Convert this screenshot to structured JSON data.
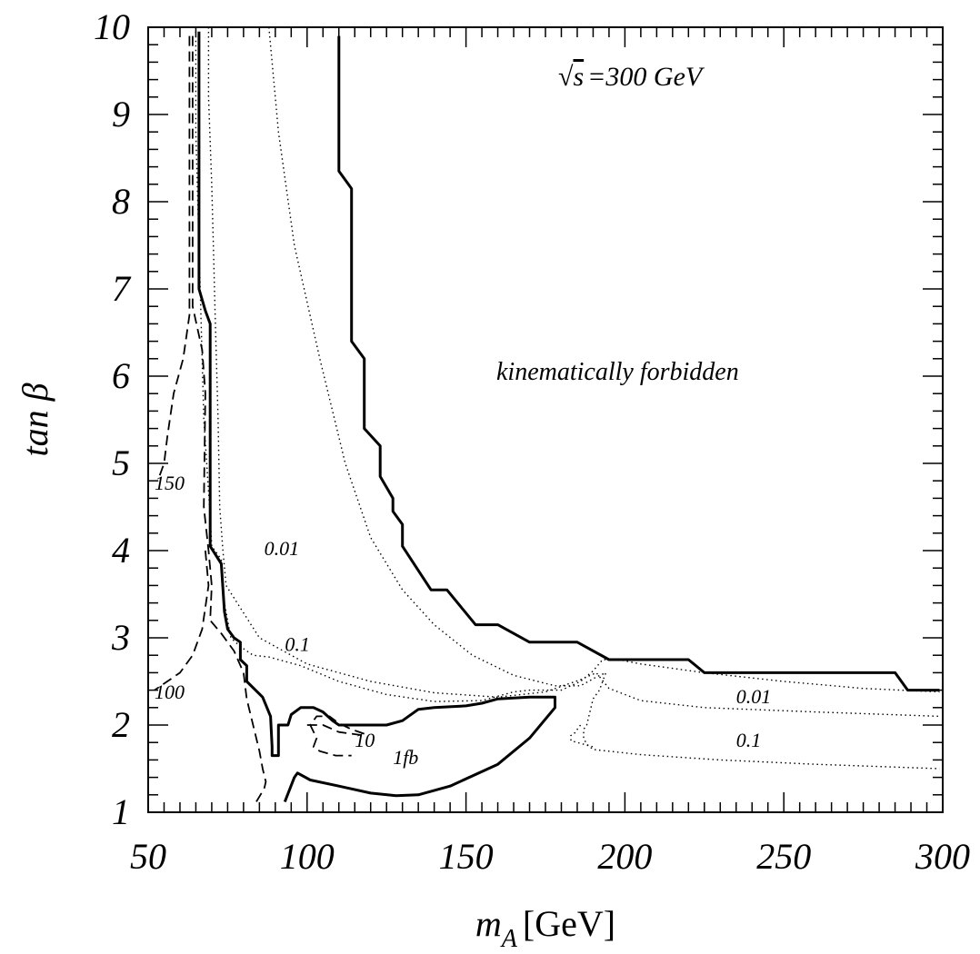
{
  "chart_data": {
    "type": "line",
    "xlabel": "m",
    "xlabel_sub": "A",
    "xlabel_unit": "[GeV]",
    "ylabel": "tan β",
    "xlim": [
      50,
      300
    ],
    "ylim": [
      1,
      10
    ],
    "x_ticks": [
      "50",
      "100",
      "150",
      "200",
      "250",
      "300"
    ],
    "y_ticks": [
      "1",
      "2",
      "3",
      "4",
      "5",
      "6",
      "7",
      "8",
      "9",
      "10"
    ],
    "energy_label": "=300 GeV",
    "energy_symbol": "s",
    "region_label": "kinematically forbidden",
    "series": [
      {
        "style": "solid",
        "points": [
          [
            110,
            9.9
          ],
          [
            110,
            8.35
          ],
          [
            114,
            8.15
          ],
          [
            114,
            6.4
          ],
          [
            118,
            6.2
          ],
          [
            118,
            5.4
          ],
          [
            123,
            5.2
          ],
          [
            123,
            4.85
          ],
          [
            127,
            4.6
          ],
          [
            127,
            4.45
          ],
          [
            130,
            4.3
          ],
          [
            130,
            4.05
          ],
          [
            139,
            3.55
          ],
          [
            144,
            3.55
          ],
          [
            153,
            3.15
          ],
          [
            160,
            3.15
          ],
          [
            170,
            2.95
          ],
          [
            185,
            2.95
          ],
          [
            195,
            2.75
          ],
          [
            220,
            2.75
          ],
          [
            225,
            2.6
          ],
          [
            285,
            2.6
          ],
          [
            289,
            2.4
          ],
          [
            299,
            2.4
          ]
        ]
      },
      {
        "style": "dashed",
        "points": [
          [
            110,
            9.9
          ],
          [
            110,
            8.35
          ],
          [
            114,
            8.15
          ],
          [
            114,
            6.4
          ],
          [
            118,
            6.2
          ],
          [
            118,
            5.4
          ],
          [
            123,
            5.2
          ],
          [
            123,
            4.85
          ],
          [
            127,
            4.6
          ],
          [
            127,
            4.45
          ],
          [
            130,
            4.3
          ],
          [
            130,
            4.05
          ],
          [
            139,
            3.55
          ],
          [
            144,
            3.55
          ],
          [
            153,
            3.15
          ],
          [
            160,
            3.15
          ],
          [
            170,
            2.95
          ],
          [
            185,
            2.95
          ],
          [
            195,
            2.75
          ],
          [
            220,
            2.75
          ],
          [
            225,
            2.6
          ],
          [
            285,
            2.6
          ],
          [
            289,
            2.4
          ],
          [
            299,
            2.4
          ]
        ]
      },
      {
        "style": "solid",
        "points": [
          [
            66,
            9.95
          ],
          [
            66,
            7.0
          ],
          [
            68,
            6.75
          ],
          [
            69.5,
            6.6
          ],
          [
            69.5,
            4.05
          ],
          [
            73,
            3.85
          ],
          [
            74,
            3.3
          ],
          [
            75,
            3.1
          ],
          [
            77,
            3.0
          ],
          [
            79,
            2.95
          ],
          [
            79,
            2.75
          ],
          [
            81,
            2.68
          ],
          [
            81,
            2.5
          ],
          [
            86,
            2.32
          ],
          [
            88.5,
            2.1
          ],
          [
            89,
            1.75
          ],
          [
            89,
            1.65
          ],
          [
            91,
            1.65
          ],
          [
            91,
            2.0
          ],
          [
            94,
            2.0
          ],
          [
            95,
            2.12
          ],
          [
            98,
            2.2
          ],
          [
            102,
            2.2
          ],
          [
            105,
            2.15
          ],
          [
            108,
            2.05
          ],
          [
            110,
            2.0
          ],
          [
            120,
            2.0
          ],
          [
            125,
            2.0
          ],
          [
            130,
            2.05
          ],
          [
            135,
            2.18
          ],
          [
            140,
            2.2
          ],
          [
            150,
            2.22
          ],
          [
            155,
            2.25
          ],
          [
            160,
            2.3
          ],
          [
            170,
            2.32
          ],
          [
            178,
            2.32
          ],
          [
            178,
            2.2
          ],
          [
            170,
            1.85
          ],
          [
            160,
            1.55
          ],
          [
            145,
            1.3
          ],
          [
            135,
            1.2
          ],
          [
            128,
            1.19
          ],
          [
            120,
            1.22
          ],
          [
            110,
            1.3
          ],
          [
            101,
            1.37
          ],
          [
            97,
            1.45
          ],
          [
            96,
            1.4
          ],
          [
            93,
            1.12
          ]
        ]
      },
      {
        "style": "dashed",
        "points": [
          [
            64,
            9.9
          ],
          [
            64,
            6.8
          ],
          [
            67,
            6.3
          ],
          [
            68,
            5.8
          ],
          [
            67.5,
            4.5
          ],
          [
            69,
            4.0
          ],
          [
            70,
            3.6
          ],
          [
            69.5,
            3.2
          ],
          [
            73,
            3.05
          ],
          [
            77,
            2.85
          ],
          [
            80,
            2.6
          ],
          [
            81,
            2.3
          ],
          [
            85,
            1.7
          ],
          [
            86,
            1.5
          ],
          [
            87,
            1.35
          ],
          [
            86.5,
            1.27
          ],
          [
            84,
            1.12
          ]
        ]
      },
      {
        "style": "dashed",
        "points": [
          [
            63,
            9.9
          ],
          [
            63,
            6.7
          ],
          [
            61,
            6.2
          ],
          [
            58,
            5.8
          ],
          [
            56,
            5.3
          ],
          [
            55,
            5.0
          ],
          [
            53,
            4.8
          ]
        ]
      },
      {
        "style": "dashed",
        "points": [
          [
            68,
            4.0
          ],
          [
            69,
            3.6
          ],
          [
            67,
            3.1
          ],
          [
            64,
            2.8
          ],
          [
            60,
            2.6
          ],
          [
            56,
            2.5
          ],
          [
            52,
            2.4
          ]
        ]
      },
      {
        "style": "dashed",
        "points": [
          [
            118,
            1.9
          ],
          [
            114,
            1.95
          ],
          [
            110,
            2.02
          ],
          [
            107,
            2.1
          ],
          [
            103,
            2.1
          ],
          [
            101,
            2.0
          ],
          [
            103,
            1.85
          ],
          [
            102,
            1.75
          ],
          [
            104,
            1.7
          ],
          [
            109,
            1.65
          ],
          [
            114,
            1.65
          ]
        ]
      },
      {
        "style": "dashed",
        "points": [
          [
            100,
            2.0
          ],
          [
            105,
            2.0
          ],
          [
            110,
            1.92
          ],
          [
            118,
            1.88
          ]
        ]
      },
      {
        "style": "dotted",
        "points": [
          [
            65,
            9.95
          ],
          [
            65,
            8.8
          ],
          [
            66,
            7.5
          ],
          [
            67.5,
            5.5
          ],
          [
            69.5,
            4.4
          ],
          [
            70,
            4.05
          ],
          [
            73,
            3.9
          ],
          [
            74,
            3.4
          ],
          [
            76,
            3.0
          ],
          [
            79,
            2.9
          ],
          [
            83,
            2.8
          ],
          [
            88,
            2.78
          ],
          [
            98,
            2.68
          ],
          [
            110,
            2.5
          ],
          [
            125,
            2.35
          ],
          [
            140,
            2.27
          ],
          [
            155,
            2.28
          ],
          [
            165,
            2.38
          ],
          [
            170,
            2.4
          ],
          [
            180,
            2.4
          ],
          [
            186,
            2.5
          ],
          [
            190,
            2.62
          ],
          [
            193,
            2.75
          ],
          [
            198,
            2.75
          ],
          [
            205,
            2.7
          ],
          [
            225,
            2.6
          ],
          [
            250,
            2.5
          ],
          [
            275,
            2.42
          ],
          [
            299,
            2.38
          ]
        ]
      },
      {
        "style": "dotted",
        "points": [
          [
            69,
            10
          ],
          [
            69,
            9.2
          ],
          [
            70,
            8.2
          ],
          [
            70.5,
            7.5
          ],
          [
            71,
            6.8
          ],
          [
            72,
            5.5
          ],
          [
            72.5,
            4.5
          ],
          [
            73.5,
            4.0
          ],
          [
            74.5,
            3.6
          ],
          [
            78,
            3.4
          ],
          [
            85,
            3.0
          ],
          [
            100,
            2.7
          ],
          [
            120,
            2.5
          ],
          [
            140,
            2.37
          ],
          [
            160,
            2.32
          ],
          [
            175,
            2.38
          ],
          [
            186,
            2.52
          ],
          [
            191,
            2.6
          ],
          [
            195,
            2.42
          ],
          [
            205,
            2.28
          ],
          [
            225,
            2.2
          ],
          [
            260,
            2.15
          ],
          [
            299,
            2.1
          ]
        ]
      },
      {
        "style": "dotted",
        "points": [
          [
            88,
            10
          ],
          [
            91,
            8.8
          ],
          [
            96,
            7.5
          ],
          [
            104,
            6.2
          ],
          [
            112,
            5.0
          ],
          [
            120,
            4.15
          ],
          [
            130,
            3.55
          ],
          [
            140,
            3.15
          ],
          [
            152,
            2.8
          ],
          [
            165,
            2.57
          ],
          [
            178,
            2.45
          ],
          [
            186,
            2.45
          ],
          [
            191,
            2.55
          ],
          [
            194,
            2.6
          ],
          [
            192,
            2.4
          ],
          [
            190,
            2.3
          ],
          [
            188,
            2.0
          ],
          [
            187,
            1.95
          ],
          [
            187,
            1.85
          ],
          [
            188,
            1.78
          ],
          [
            190,
            1.72
          ],
          [
            205,
            1.66
          ],
          [
            230,
            1.6
          ],
          [
            260,
            1.55
          ],
          [
            299,
            1.5
          ]
        ]
      },
      {
        "style": "dotted",
        "points": [
          [
            186,
            2.0
          ],
          [
            184,
            1.9
          ],
          [
            183,
            1.88
          ],
          [
            183,
            1.82
          ],
          [
            185,
            1.8
          ],
          [
            190,
            1.75
          ]
        ]
      }
    ],
    "labels": [
      {
        "text": "150",
        "x": 52,
        "y": 4.7
      },
      {
        "text": "0.01",
        "x": 86.5,
        "y": 3.95
      },
      {
        "text": "0.1",
        "x": 93,
        "y": 2.85
      },
      {
        "text": "100",
        "x": 52,
        "y": 2.3
      },
      {
        "text": "10",
        "x": 115,
        "y": 1.75
      },
      {
        "text": "1fb",
        "x": 127,
        "y": 1.55
      },
      {
        "text": "0.01",
        "x": 235,
        "y": 2.25
      },
      {
        "text": "0.1",
        "x": 235,
        "y": 1.75
      }
    ]
  }
}
